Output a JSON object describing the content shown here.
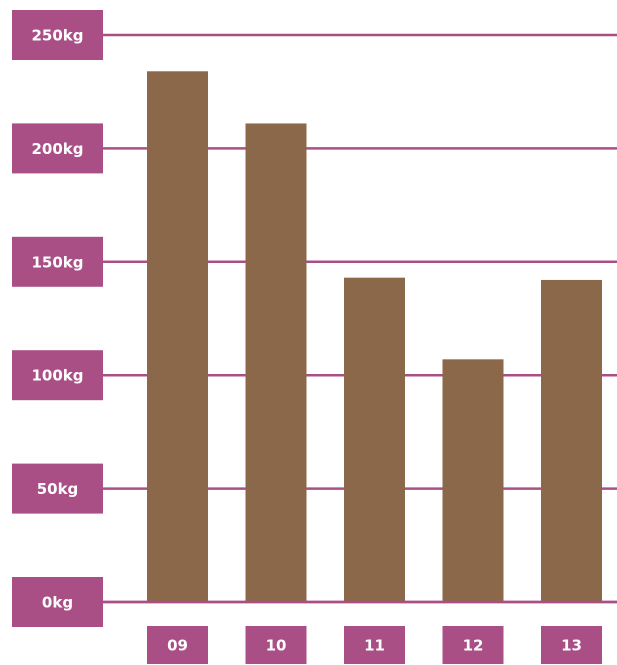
{
  "chart_data": {
    "type": "bar",
    "title": "",
    "xlabel": "",
    "ylabel": "",
    "categories": [
      "09",
      "10",
      "11",
      "12",
      "13"
    ],
    "values": [
      234,
      211,
      143,
      107,
      142
    ],
    "unit": "kg",
    "ylim": [
      0,
      250
    ],
    "y_ticks": [
      0,
      50,
      100,
      150,
      200,
      250
    ],
    "y_tick_labels": [
      "0kg",
      "50kg",
      "100kg",
      "150kg",
      "200kg",
      "250kg"
    ],
    "grid": true,
    "legend": "none",
    "colors": {
      "bar": "#8b6849",
      "label_box": "#a94f86",
      "gridline": "#a94f86",
      "label_text": "#ffffff",
      "background": "#ffffff"
    }
  }
}
